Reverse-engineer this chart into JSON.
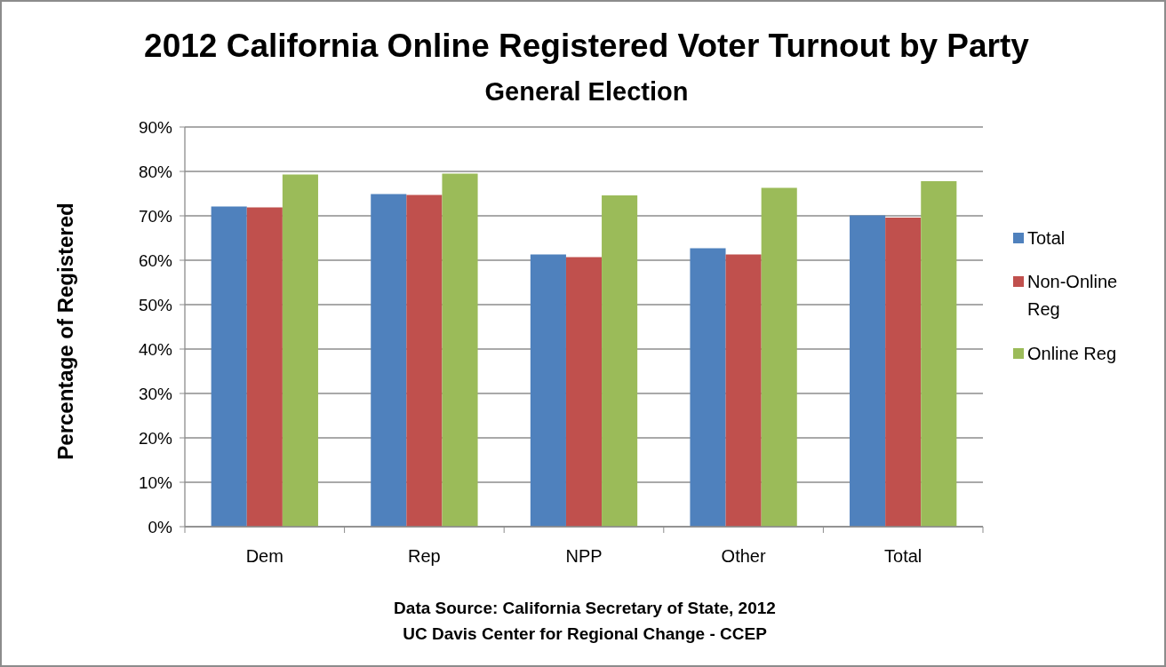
{
  "chart_data": {
    "type": "bar",
    "title": "2012 California Online Registered Voter Turnout by Party",
    "subtitle": "General Election",
    "ylabel": "Percentage of Registered",
    "categories": [
      "Dem",
      "Rep",
      "NPP",
      "Other",
      "Total"
    ],
    "series": [
      {
        "name": "Total",
        "color": "#4f81bd",
        "values": [
          72.1,
          74.9,
          61.3,
          62.7,
          70.1
        ]
      },
      {
        "name": "Non-Online Reg",
        "color": "#c0504d",
        "values": [
          71.9,
          74.7,
          60.7,
          61.3,
          69.6
        ]
      },
      {
        "name": "Online Reg",
        "color": "#9bbb59",
        "values": [
          79.3,
          79.5,
          74.6,
          76.3,
          77.8
        ]
      }
    ],
    "ylim": [
      0,
      90
    ],
    "yticks": [
      {
        "value": 0,
        "label": "0%"
      },
      {
        "value": 10,
        "label": "10%"
      },
      {
        "value": 20,
        "label": "20%"
      },
      {
        "value": 30,
        "label": "30%"
      },
      {
        "value": 40,
        "label": "40%"
      },
      {
        "value": 50,
        "label": "50%"
      },
      {
        "value": 60,
        "label": "60%"
      },
      {
        "value": 70,
        "label": "70%"
      },
      {
        "value": 80,
        "label": "80%"
      },
      {
        "value": 90,
        "label": "90%"
      }
    ],
    "grid": "y",
    "legend": "right",
    "annotations": [
      "Data Source: California Secretary of State, 2012",
      "UC Davis Center for Regional Change - CCEP"
    ]
  }
}
